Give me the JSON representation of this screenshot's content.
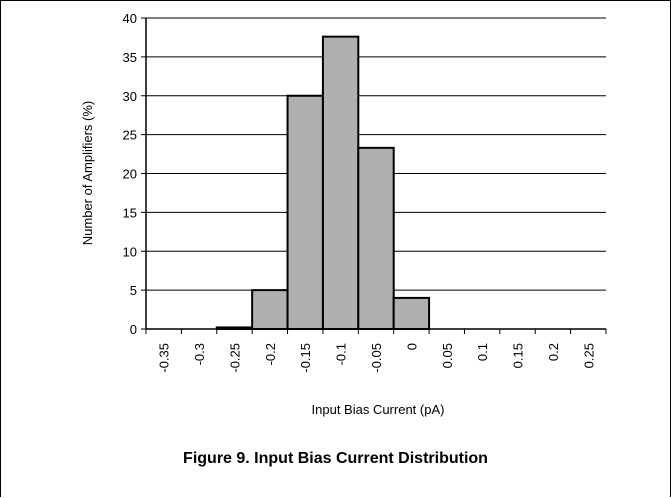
{
  "chart_data": {
    "type": "bar",
    "categories": [
      "-0.35",
      "-0.3",
      "-0.25",
      "-0.2",
      "-0.15",
      "-0.1",
      "-0.05",
      "0",
      "0.05",
      "0.1",
      "0.15",
      "0.2",
      "0.25"
    ],
    "values": [
      0,
      0,
      0.2,
      5,
      30,
      37.6,
      23.3,
      4,
      0,
      0,
      0,
      0,
      0
    ],
    "yticks": [
      "0",
      "5",
      "10",
      "15",
      "20",
      "25",
      "30",
      "35",
      "40"
    ],
    "ylim": [
      0,
      40
    ],
    "xlabel": "Input Bias Current (pA)",
    "ylabel": "Number of Amplifiers (%)",
    "bar_color": "#b0b0b0",
    "edge_color": "#000000",
    "grid": true
  },
  "caption": "Figure 9. Input Bias Current Distribution"
}
